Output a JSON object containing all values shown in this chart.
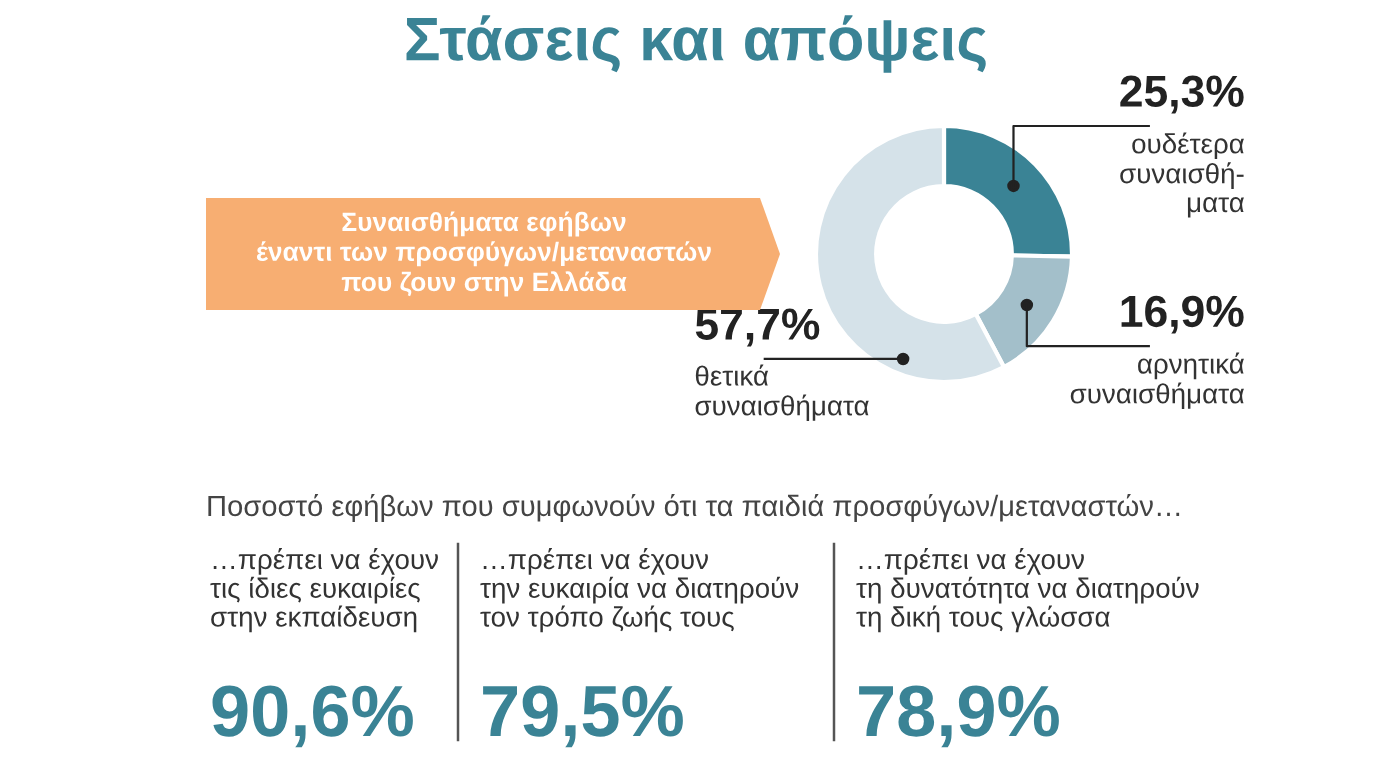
{
  "chart_data": [
    {
      "type": "donut",
      "title": "Στάσεις και απόψεις",
      "annotations": [
        "Συναισθήματα εφήβων\nέναντι των προσφύγων/μεταναστών\nπου ζουν στην Ελλάδα"
      ],
      "categories": [
        "ουδέτερα\nσυναισθή-\nματα",
        "αρνητικά\nσυναισθήματα",
        "θετικά\nσυναισθήματα"
      ],
      "values": [
        25.3,
        16.9,
        57.7
      ],
      "value_labels": [
        "25,3%",
        "16,9%",
        "57,7%"
      ],
      "colors": [
        "#3a8395",
        "#a3bfca",
        "#d5e2e9"
      ]
    },
    {
      "type": "other",
      "title": "Ποσοστό εφήβων που συμφωνούν ότι τα παιδιά προσφύγων/μεταναστών…",
      "categories": [
        "…πρέπει να έχουν\nτις ίδιες ευκαιρίες\nστην εκπαίδευση",
        "…πρέπει να έχουν\nτην ευκαιρία να διατηρούν\nτον τρόπο ζωής τους",
        "…πρέπει να έχουν\nτη δυνατότητα να διατηρούν\nτη δική τους γλώσσα"
      ],
      "values": [
        90.6,
        79.5,
        78.9
      ],
      "value_labels": [
        "90,6%",
        "79,5%",
        "78,9%"
      ],
      "color": "#3a8395"
    }
  ]
}
